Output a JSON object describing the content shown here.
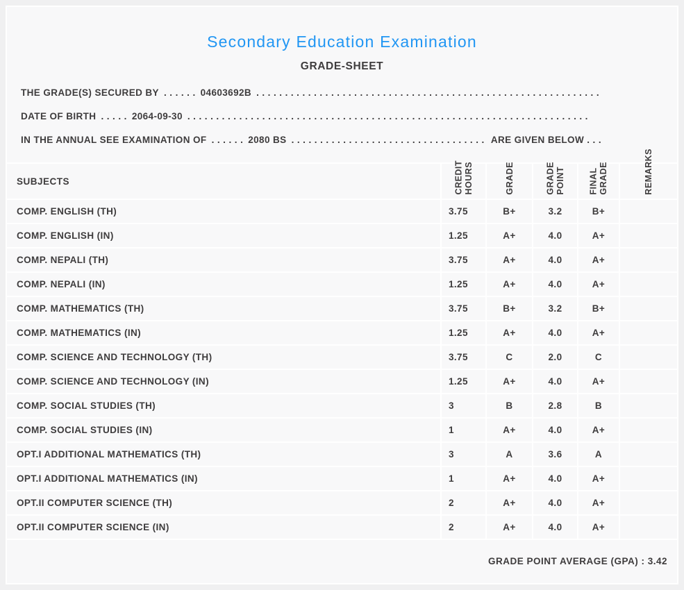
{
  "page": {
    "title": "Secondary Education Examination",
    "subtitle": "GRADE-SHEET"
  },
  "info_lines": [
    {
      "label": "THE GRADE(S) SECURED BY",
      "sep": ". . . . . .",
      "value": "04603692B",
      "suffix": ""
    },
    {
      "label": "DATE OF BIRTH",
      "sep": ". . . . .",
      "value": "2064-09-30",
      "suffix": ""
    },
    {
      "label": "IN THE ANNUAL SEE EXAMINATION OF",
      "sep": ". . . . . .",
      "value": "2080 BS",
      "suffix": "ARE GIVEN BELOW . . ."
    }
  ],
  "filler_dots": ". . . . . . . . . . . . . . . . . . . . . . . . . . . . . . . . . . . . . . . . . . . . . . . . . . . . . . . . . . . . . . . . . . . . . . . . . . . . . . . . . . . . . . . . . . . . . . . . . . . . . . . . . . . . . . . . . . . . . . . . . . . . . . . .",
  "table": {
    "subjects_header": "SUBJECTS",
    "col_headers": [
      "CREDIT\nHOURS",
      "GRADE",
      "GRADE\nPOINT",
      "FINAL\nGRADE",
      "REMARKS"
    ],
    "rows": [
      {
        "subject": "COMP. ENGLISH (TH)",
        "credit": "3.75",
        "grade": "B+",
        "point": "3.2",
        "final": "B+",
        "remarks": ""
      },
      {
        "subject": "COMP. ENGLISH (IN)",
        "credit": "1.25",
        "grade": "A+",
        "point": "4.0",
        "final": "A+",
        "remarks": ""
      },
      {
        "subject": "COMP. NEPALI (TH)",
        "credit": "3.75",
        "grade": "A+",
        "point": "4.0",
        "final": "A+",
        "remarks": ""
      },
      {
        "subject": "COMP. NEPALI (IN)",
        "credit": "1.25",
        "grade": "A+",
        "point": "4.0",
        "final": "A+",
        "remarks": ""
      },
      {
        "subject": "COMP. MATHEMATICS (TH)",
        "credit": "3.75",
        "grade": "B+",
        "point": "3.2",
        "final": "B+",
        "remarks": ""
      },
      {
        "subject": "COMP. MATHEMATICS (IN)",
        "credit": "1.25",
        "grade": "A+",
        "point": "4.0",
        "final": "A+",
        "remarks": ""
      },
      {
        "subject": "COMP. SCIENCE AND TECHNOLOGY (TH)",
        "credit": "3.75",
        "grade": "C",
        "point": "2.0",
        "final": "C",
        "remarks": ""
      },
      {
        "subject": "COMP. SCIENCE AND TECHNOLOGY (IN)",
        "credit": "1.25",
        "grade": "A+",
        "point": "4.0",
        "final": "A+",
        "remarks": ""
      },
      {
        "subject": "COMP. SOCIAL STUDIES (TH)",
        "credit": "3",
        "grade": "B",
        "point": "2.8",
        "final": "B",
        "remarks": ""
      },
      {
        "subject": "COMP. SOCIAL STUDIES (IN)",
        "credit": "1",
        "grade": "A+",
        "point": "4.0",
        "final": "A+",
        "remarks": ""
      },
      {
        "subject": "OPT.I ADDITIONAL MATHEMATICS (TH)",
        "credit": "3",
        "grade": "A",
        "point": "3.6",
        "final": "A",
        "remarks": ""
      },
      {
        "subject": "OPT.I ADDITIONAL MATHEMATICS (IN)",
        "credit": "1",
        "grade": "A+",
        "point": "4.0",
        "final": "A+",
        "remarks": ""
      },
      {
        "subject": "OPT.II COMPUTER SCIENCE (TH)",
        "credit": "2",
        "grade": "A+",
        "point": "4.0",
        "final": "A+",
        "remarks": ""
      },
      {
        "subject": "OPT.II COMPUTER SCIENCE (IN)",
        "credit": "2",
        "grade": "A+",
        "point": "4.0",
        "final": "A+",
        "remarks": ""
      }
    ],
    "gpa_label": "GRADE POINT AVERAGE (GPA) : 3.42"
  },
  "colors": {
    "accent": "#2196f3",
    "text": "#3e3c3d",
    "card_bg": "#f8f8f9",
    "page_bg": "#f0f0f1",
    "separator": "#ffffff"
  }
}
